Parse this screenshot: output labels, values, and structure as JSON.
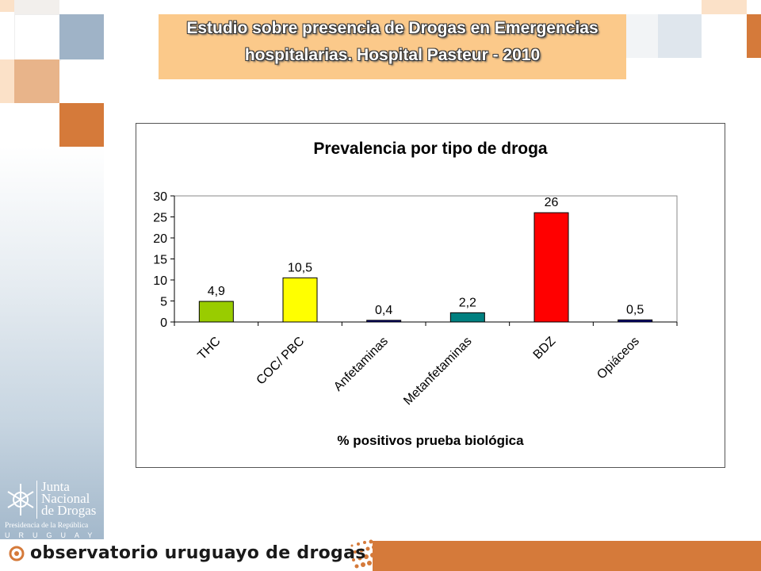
{
  "slide": {
    "title_line1": "Estudio sobre presencia de Drogas en Emergencias",
    "title_line2": "hospitalarias. Hospital Pasteur - 2010"
  },
  "logo": {
    "name_lines": [
      "Junta",
      "Nacional",
      "de Drogas"
    ],
    "subtitle": "Presidencia de la República",
    "country": "URUGUAY"
  },
  "footer": {
    "brand_text": "observatorio uruguayo de drogas"
  },
  "colors": {
    "accent_orange": "#d57a3a",
    "banner": "#fbc98a",
    "steel_blue": "#9fb3c7"
  },
  "chart_data": {
    "type": "bar",
    "title": "Prevalencia por tipo de droga",
    "xlabel": "% positivos prueba biológica",
    "ylabel": "",
    "categories": [
      "THC",
      "COC/ PBC",
      "Anfetaminas",
      "Metanfetaminas",
      "BDZ",
      "Opiáceos"
    ],
    "values": [
      4.9,
      10.5,
      0.4,
      2.2,
      26,
      0.5
    ],
    "value_labels": [
      "4,9",
      "10,5",
      "0,4",
      "2,2",
      "26",
      "0,5"
    ],
    "bar_colors": [
      "#99cc00",
      "#ffff00",
      "#000080",
      "#008080",
      "#ff0000",
      "#000080"
    ],
    "ylim": [
      0,
      30
    ],
    "yticks": [
      0,
      5,
      10,
      15,
      20,
      25,
      30
    ],
    "grid": false,
    "legend": "none"
  }
}
